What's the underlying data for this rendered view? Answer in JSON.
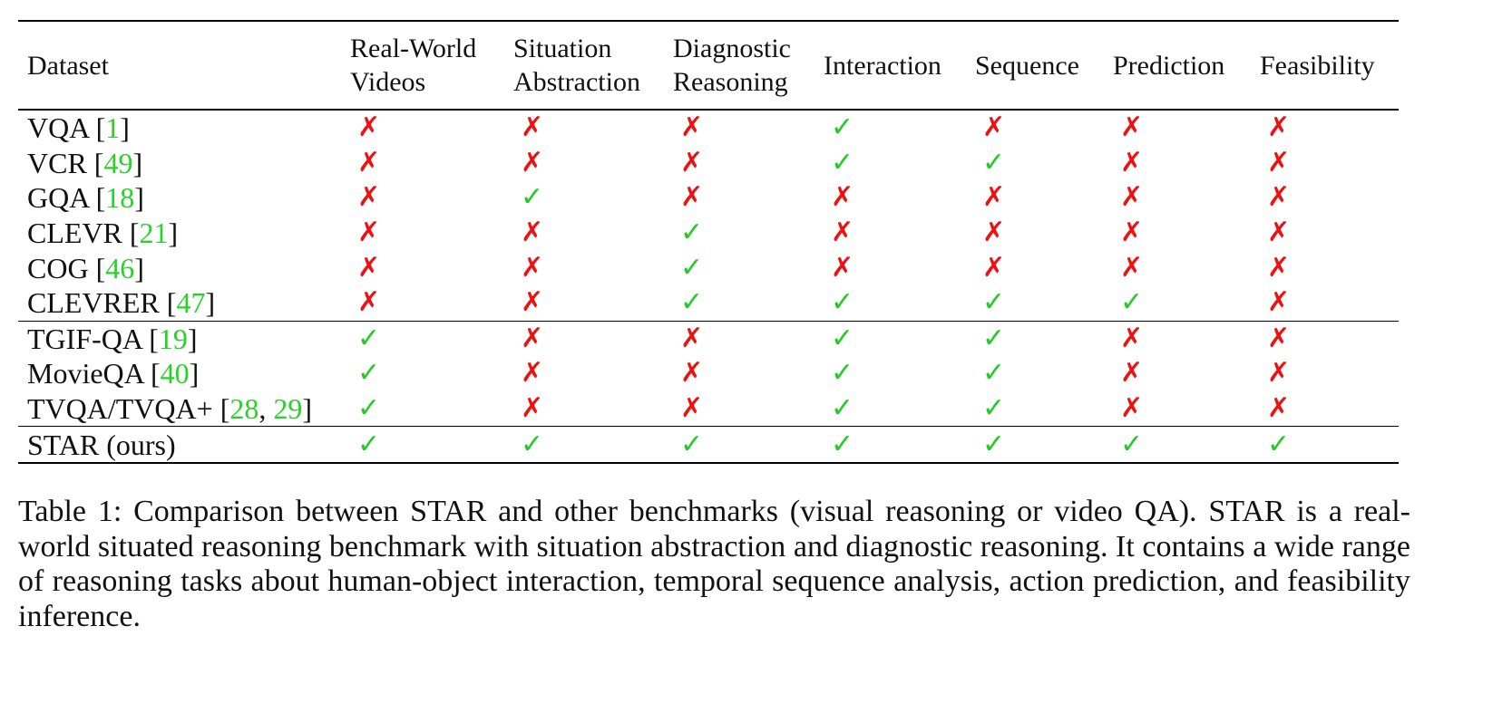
{
  "table": {
    "headers": [
      [
        "Dataset"
      ],
      [
        "Real-World",
        "Videos"
      ],
      [
        "Situation",
        "Abstraction"
      ],
      [
        "Diagnostic",
        "Reasoning"
      ],
      [
        "Interaction"
      ],
      [
        "Sequence"
      ],
      [
        "Prediction"
      ],
      [
        "Feasibility"
      ]
    ],
    "rows": [
      {
        "name": "VQA",
        "cites": [
          "1"
        ],
        "marks": [
          "✗",
          "✗",
          "✗",
          "✓",
          "✗",
          "✗",
          "✗"
        ]
      },
      {
        "name": "VCR",
        "cites": [
          "49"
        ],
        "marks": [
          "✗",
          "✗",
          "✗",
          "✓",
          "✓",
          "✗",
          "✗"
        ]
      },
      {
        "name": "GQA",
        "cites": [
          "18"
        ],
        "marks": [
          "✗",
          "✓",
          "✗",
          "✗",
          "✗",
          "✗",
          "✗"
        ]
      },
      {
        "name": "CLEVR",
        "cites": [
          "21"
        ],
        "marks": [
          "✗",
          "✗",
          "✓",
          "✗",
          "✗",
          "✗",
          "✗"
        ]
      },
      {
        "name": "COG",
        "cites": [
          "46"
        ],
        "marks": [
          "✗",
          "✗",
          "✓",
          "✗",
          "✗",
          "✗",
          "✗"
        ]
      },
      {
        "name": "CLEVRER",
        "cites": [
          "47"
        ],
        "marks": [
          "✗",
          "✗",
          "✓",
          "✓",
          "✓",
          "✓",
          "✗"
        ]
      },
      {
        "name": "TGIF-QA",
        "cites": [
          "19"
        ],
        "marks": [
          "✓",
          "✗",
          "✗",
          "✓",
          "✓",
          "✗",
          "✗"
        ]
      },
      {
        "name": "MovieQA",
        "cites": [
          "40"
        ],
        "marks": [
          "✓",
          "✗",
          "✗",
          "✓",
          "✓",
          "✗",
          "✗"
        ]
      },
      {
        "name": "TVQA/TVQA+",
        "cites": [
          "28",
          "29"
        ],
        "marks": [
          "✓",
          "✗",
          "✗",
          "✓",
          "✓",
          "✗",
          "✗"
        ]
      },
      {
        "name": "STAR (ours)",
        "cites": [],
        "marks": [
          "✓",
          "✓",
          "✓",
          "✓",
          "✓",
          "✓",
          "✓"
        ]
      }
    ],
    "yes_color": "#22cc22",
    "no_color": "#ee1111",
    "cite_color": "#2bd12b"
  },
  "caption": "Table 1: Comparison between STAR and other benchmarks (visual reasoning or video QA). STAR is a real-world situated reasoning benchmark with situation abstraction and diagnostic reasoning. It contains a wide range of reasoning tasks about human-object interaction, temporal sequence analysis, action prediction, and feasibility inference."
}
